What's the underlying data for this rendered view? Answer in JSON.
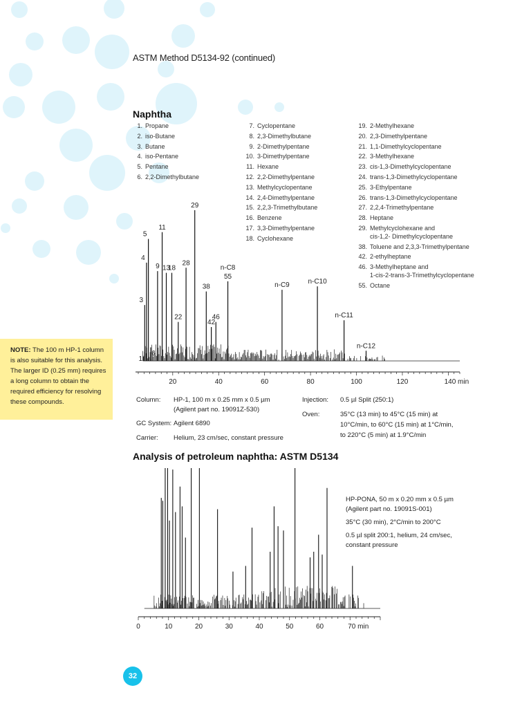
{
  "header": "ASTM Method D5134-92 (continued)",
  "section1_title": "Naphtha",
  "legend": {
    "col1": [
      {
        "n": "1.",
        "name": "Propane"
      },
      {
        "n": "2.",
        "name": "iso-Butane"
      },
      {
        "n": "3.",
        "name": "Butane"
      },
      {
        "n": "4.",
        "name": "iso-Pentane"
      },
      {
        "n": "5.",
        "name": "Pentane"
      },
      {
        "n": "6.",
        "name": "2,2-Dimethylbutane"
      }
    ],
    "col2": [
      {
        "n": "7.",
        "name": "Cyclopentane"
      },
      {
        "n": "8.",
        "name": "2,3-Dimethylbutane"
      },
      {
        "n": "9.",
        "name": "2-Dimethylpentane"
      },
      {
        "n": "10.",
        "name": "3-Dimethylpentane"
      },
      {
        "n": "11.",
        "name": "Hexane"
      },
      {
        "n": "12.",
        "name": "2,2-Dimethylpentane"
      },
      {
        "n": "13.",
        "name": "Methylcyclopentane"
      },
      {
        "n": "14.",
        "name": "2,4-Dimethylpentane"
      },
      {
        "n": "15.",
        "name": "2,2,3-Trimethylbutane"
      },
      {
        "n": "16.",
        "name": "Benzene"
      },
      {
        "n": "17.",
        "name": "3,3-Dimethylpentane"
      },
      {
        "n": "18.",
        "name": "Cyclohexane"
      }
    ],
    "col3": [
      {
        "n": "19.",
        "name": "2-Methylhexane"
      },
      {
        "n": "20.",
        "name": "2,3-Dimethylpentane"
      },
      {
        "n": "21.",
        "name": "1,1-Dimethylcyclopentane"
      },
      {
        "n": "22.",
        "name": "3-Methylhexane"
      },
      {
        "n": "23.",
        "name": "cis-1,3-Dimethylcyclopentane"
      },
      {
        "n": "24.",
        "name": "trans-1,3-Dimethylcyclopentane"
      },
      {
        "n": "25.",
        "name": "3-Ethylpentane"
      },
      {
        "n": "26.",
        "name": "trans-1,3-Dimethylcyclopentane"
      },
      {
        "n": "27.",
        "name": "2,2,4-Trimethylpentane"
      },
      {
        "n": "28.",
        "name": "Heptane"
      },
      {
        "n": "29.",
        "name": "Methylcyclohexane and",
        "cont": "cis-1,2- Dimethylcyclopentane"
      },
      {
        "n": "38.",
        "name": "Toluene and 2,3,3-Trimethylpentane"
      },
      {
        "n": "42.",
        "name": "2-ethylheptane"
      },
      {
        "n": "46.",
        "name": "3-Methylheptane and",
        "cont": "1-cis-2-trans-3-Trimethylcyclopentane"
      },
      {
        "n": "55.",
        "name": "Octane"
      }
    ]
  },
  "note": {
    "bold": "NOTE:",
    "text": " The 100 m HP-1 column is also suitable for this analysis. The larger ID (0.25 mm) requires a long column to obtain the required efficiency for resolving these compounds."
  },
  "conditions1": {
    "column_label": "Column:",
    "column_value_1": "HP-1, 100 m x 0.25 mm x 0.5 µm",
    "column_value_2": "(Agilent part no. 19091Z-530)",
    "gc_label": "GC System:",
    "gc_value": "Agilent 6890",
    "carrier_label": "Carrier:",
    "carrier_value": "Helium, 23 cm/sec, constant pressure",
    "injection_label": "Injection:",
    "injection_value": "0.5 µl Split (250:1)",
    "oven_label": "Oven:",
    "oven_value_1": "35°C (13 min) to 45°C (15 min) at",
    "oven_value_2": "10°C/min, to 60°C (15 min) at 1°C/min,",
    "oven_value_3": "to 220°C (5 min) at 1.9°C/min"
  },
  "section2_title": "Analysis of petroleum naphtha:  ASTM D5134",
  "conditions2": {
    "line1": "HP-PONA, 50 m x 0.20 mm x 0.5 µm",
    "line2": "(Agilent part no. 19091S-001)",
    "line3": "35°C (30 min), 2°C/min to 200°C",
    "line4": "0.5 µl split 200:1, helium, 24 cm/sec,",
    "line5": "constant pressure"
  },
  "page_number": "32",
  "colors": {
    "bubble": "#dff4fb",
    "note_bg": "#fff09a",
    "page_badge": "#18c1ea"
  },
  "chart_data": [
    {
      "type": "line",
      "title": "",
      "xlabel": "",
      "ylabel": "",
      "x_unit": "min",
      "xlim": [
        5,
        145
      ],
      "x_ticks": [
        20,
        40,
        60,
        80,
        100,
        120,
        140
      ],
      "x_tick_labels": [
        "20",
        "40",
        "60",
        "80",
        "100",
        "120",
        "140 min"
      ],
      "grid": false,
      "peaks": [
        {
          "t": 7.2,
          "h": 0.025,
          "label": "1"
        },
        {
          "t": 7.8,
          "h": 0.33,
          "label": "3"
        },
        {
          "t": 8.6,
          "h": 0.58,
          "label": "4"
        },
        {
          "t": 9.4,
          "h": 0.72,
          "label": "5"
        },
        {
          "t": 10.4,
          "h": 0.08,
          "label": "6"
        },
        {
          "t": 13.4,
          "h": 0.53,
          "label": "9"
        },
        {
          "t": 15.4,
          "h": 0.76,
          "label": "11"
        },
        {
          "t": 17.2,
          "h": 0.52,
          "label": "13"
        },
        {
          "t": 19.6,
          "h": 0.52,
          "label": "18"
        },
        {
          "t": 22.4,
          "h": 0.23,
          "label": "22"
        },
        {
          "t": 25.8,
          "h": 0.55,
          "label": "28"
        },
        {
          "t": 29.6,
          "h": 0.89,
          "label": "29"
        },
        {
          "t": 34.6,
          "h": 0.41,
          "label": "38"
        },
        {
          "t": 36.8,
          "h": 0.2,
          "label": "42"
        },
        {
          "t": 38.8,
          "h": 0.23,
          "label": "46"
        },
        {
          "t": 44.0,
          "h": 0.47,
          "label": "55"
        },
        {
          "t": 67.6,
          "h": 0.42,
          "label": "n-C9"
        },
        {
          "t": 83.0,
          "h": 0.44,
          "label": "n-C10"
        },
        {
          "t": 94.6,
          "h": 0.24,
          "label": "n-C11"
        },
        {
          "t": 104.2,
          "h": 0.06,
          "label": "n-C12"
        }
      ],
      "extra_labels": [
        {
          "t": 44.0,
          "label": "n-C8"
        }
      ]
    },
    {
      "type": "line",
      "title": "",
      "xlabel": "",
      "ylabel": "",
      "x_unit": "min",
      "xlim": [
        0,
        80
      ],
      "x_ticks": [
        0,
        10,
        20,
        30,
        40,
        50,
        60,
        70
      ],
      "x_tick_labels": [
        "0",
        "10",
        "20",
        "30",
        "40",
        "50",
        "60",
        "70 min"
      ],
      "grid": false
    }
  ]
}
